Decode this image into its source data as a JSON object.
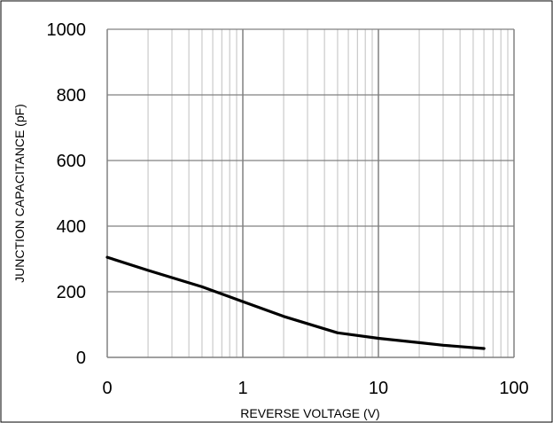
{
  "chart_data": {
    "type": "line",
    "title": "",
    "xlabel": "REVERSE VOLTAGE (V)",
    "ylabel": "JUNCTION CAPACITANCE (pF)",
    "xscale": "log",
    "xlim": [
      0.1,
      100
    ],
    "ylim": [
      0,
      1000
    ],
    "xticks": [
      0.1,
      1,
      10,
      100
    ],
    "xtick_labels": [
      "0",
      "1",
      "10",
      "100"
    ],
    "yticks": [
      0,
      200,
      400,
      600,
      800,
      1000
    ],
    "ytick_labels": [
      "0",
      "200",
      "400",
      "600",
      "800",
      "1000"
    ],
    "grid": true,
    "legend": "none",
    "series": [
      {
        "color": "#000000",
        "x": [
          0.1,
          0.2,
          0.5,
          1,
          2,
          5,
          10,
          20,
          30,
          60
        ],
        "y": [
          305,
          265,
          215,
          170,
          125,
          75,
          58,
          45,
          37,
          27
        ]
      }
    ]
  }
}
